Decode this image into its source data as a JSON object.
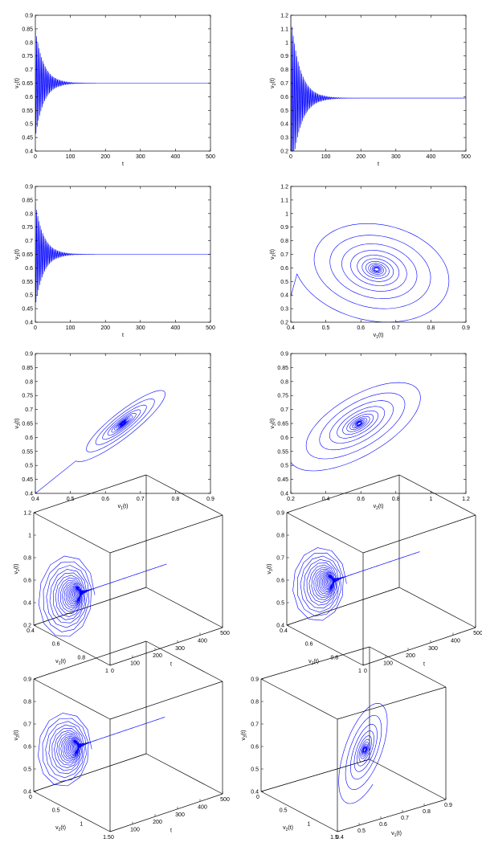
{
  "figure": {
    "trace_color": "#0000ff",
    "axis_color": "#000000"
  },
  "chart_data": [
    {
      "id": "p1",
      "type": "line",
      "panel": "v1-vs-t",
      "xlabel": "t",
      "ylabel": "v1(t)",
      "xlim": [
        0,
        500
      ],
      "ylim": [
        0.4,
        0.9
      ],
      "xticks": [
        "0",
        "100",
        "200",
        "300",
        "400",
        "500"
      ],
      "yticks": [
        "0.4",
        "0.45",
        "0.5",
        "0.55",
        "0.6",
        "0.65",
        "0.7",
        "0.75",
        "0.8",
        "0.85",
        "0.9"
      ],
      "series": [
        {
          "kind": "damped-oscillation",
          "equilibrium": 0.65,
          "initial_amplitude": 0.2,
          "settle_t": 100,
          "period": 3.5
        }
      ]
    },
    {
      "id": "p2",
      "type": "line",
      "panel": "v2-vs-t",
      "xlabel": "t",
      "ylabel": "v2(t)",
      "xlim": [
        0,
        500
      ],
      "ylim": [
        0.2,
        1.2
      ],
      "xticks": [
        "0",
        "100",
        "200",
        "300",
        "400",
        "500"
      ],
      "yticks": [
        "0.2",
        "0.3",
        "0.4",
        "0.5",
        "0.6",
        "0.7",
        "0.8",
        "0.9",
        "1",
        "1.1",
        "1.2"
      ],
      "series": [
        {
          "kind": "damped-oscillation",
          "equilibrium": 0.59,
          "initial_amplitude": 0.6,
          "settle_t": 110,
          "period": 3.5
        }
      ]
    },
    {
      "id": "p3",
      "type": "line",
      "panel": "v3-vs-t",
      "xlabel": "t",
      "ylabel": "v3(t)",
      "xlim": [
        0,
        500
      ],
      "ylim": [
        0.4,
        0.9
      ],
      "xticks": [
        "0",
        "100",
        "200",
        "300",
        "400",
        "500"
      ],
      "yticks": [
        "0.4",
        "0.45",
        "0.5",
        "0.55",
        "0.6",
        "0.65",
        "0.7",
        "0.75",
        "0.8",
        "0.85",
        "0.9"
      ],
      "series": [
        {
          "kind": "damped-oscillation",
          "equilibrium": 0.65,
          "initial_amplitude": 0.19,
          "settle_t": 100,
          "period": 3.5
        }
      ]
    },
    {
      "id": "p4",
      "type": "line",
      "panel": "phase-v1-v2",
      "xlabel": "v1(t)",
      "ylabel": "v2(t)",
      "xlim": [
        0.4,
        0.9
      ],
      "ylim": [
        0.2,
        1.2
      ],
      "xticks": [
        "0.4",
        "0.5",
        "0.6",
        "0.7",
        "0.8",
        "0.9"
      ],
      "yticks": [
        "0.2",
        "0.3",
        "0.4",
        "0.5",
        "0.6",
        "0.7",
        "0.8",
        "0.9",
        "1",
        "1.1",
        "1.2"
      ],
      "series": [
        {
          "kind": "spiral",
          "center": [
            0.645,
            0.59
          ],
          "radius": [
            0.23,
            0.42
          ],
          "tilt": 0.15,
          "turns": 13,
          "start": [
            0.4,
            0.39
          ]
        }
      ]
    },
    {
      "id": "p5",
      "type": "line",
      "panel": "phase-v1-v3",
      "xlabel": "v1(t)",
      "ylabel": "v3(t)",
      "xlim": [
        0.4,
        0.9
      ],
      "ylim": [
        0.4,
        0.9
      ],
      "xticks": [
        "0.4",
        "0.5",
        "0.6",
        "0.7",
        "0.8",
        "0.9"
      ],
      "yticks": [
        "0.4",
        "0.45",
        "0.5",
        "0.55",
        "0.6",
        "0.65",
        "0.7",
        "0.75",
        "0.8",
        "0.85",
        "0.9"
      ],
      "series": [
        {
          "kind": "spiral",
          "center": [
            0.65,
            0.65
          ],
          "radius": [
            0.19,
            0.045
          ],
          "tilt": 0.785,
          "turns": 13,
          "start": [
            0.4,
            0.4
          ]
        }
      ]
    },
    {
      "id": "p6",
      "type": "line",
      "panel": "phase-v2-v3",
      "xlabel": "v2(t)",
      "ylabel": "v3(t)",
      "xlim": [
        0.2,
        1.2
      ],
      "ylim": [
        0.4,
        0.9
      ],
      "xticks": [
        "0.2",
        "0.4",
        "0.6",
        "0.8",
        "1",
        "1.2"
      ],
      "yticks": [
        "0.4",
        "0.45",
        "0.5",
        "0.55",
        "0.6",
        "0.65",
        "0.7",
        "0.75",
        "0.8",
        "0.85",
        "0.9"
      ],
      "series": [
        {
          "kind": "spiral",
          "center": [
            0.59,
            0.65
          ],
          "radius": [
            0.42,
            0.13
          ],
          "tilt": 0.3,
          "turns": 13,
          "start": [
            0.2,
            0.4
          ]
        }
      ]
    },
    {
      "id": "p7",
      "type": "line3d",
      "panel": "v1-t-v2",
      "axes_labels": [
        "v1(t)",
        "t",
        "v2(t)"
      ],
      "a_ticks": [
        "0.4",
        "0.6",
        "0.8",
        "1"
      ],
      "t_ticks": [
        "0",
        "100",
        "200",
        "300",
        "400",
        "500"
      ],
      "z_ticks": [
        "0.2",
        "0.4",
        "0.6",
        "0.8",
        "1",
        "1.2"
      ],
      "series": [
        {
          "kind": "damped-3d",
          "a_eq": 0.65,
          "z_eq": 0.59,
          "a_amp": 0.23,
          "z_amp": 0.42,
          "settle_t": 110
        }
      ]
    },
    {
      "id": "p8",
      "type": "line3d",
      "panel": "v1-t-v3",
      "axes_labels": [
        "v1(t)",
        "t",
        "v3(t)"
      ],
      "a_ticks": [
        "0.4",
        "0.6",
        "0.8",
        "1"
      ],
      "t_ticks": [
        "0",
        "100",
        "200",
        "300",
        "400",
        "500"
      ],
      "z_ticks": [
        "0.4",
        "0.5",
        "0.6",
        "0.7",
        "0.8",
        "0.9"
      ],
      "series": [
        {
          "kind": "damped-3d",
          "a_eq": 0.65,
          "z_eq": 0.65,
          "a_amp": 0.22,
          "z_amp": 0.19,
          "settle_t": 110
        }
      ]
    },
    {
      "id": "p9",
      "type": "line3d",
      "panel": "v2-t-v3",
      "axes_labels": [
        "v2(t)",
        "t",
        "v3(t)"
      ],
      "a_ticks": [
        "0",
        "0.5",
        "1",
        "1.5"
      ],
      "t_ticks": [
        "0",
        "100",
        "200",
        "300",
        "400",
        "500"
      ],
      "z_ticks": [
        "0.4",
        "0.5",
        "0.6",
        "0.7",
        "0.8",
        "0.9"
      ],
      "series": [
        {
          "kind": "damped-3d",
          "a_eq": 0.59,
          "z_eq": 0.65,
          "a_amp": 0.55,
          "z_amp": 0.19,
          "settle_t": 110
        }
      ]
    },
    {
      "id": "p10",
      "type": "line3d",
      "panel": "v2-v1-v3",
      "axes_labels": [
        "v2(t)",
        "v1(t)",
        "v3(t)"
      ],
      "a_ticks": [
        "0",
        "0.5",
        "1",
        "1.5"
      ],
      "b_ticks": [
        "0.4",
        "0.5",
        "0.6",
        "0.7",
        "0.8",
        "0.9"
      ],
      "z_ticks": [
        "0.4",
        "0.5",
        "0.6",
        "0.7",
        "0.8",
        "0.9"
      ],
      "series": [
        {
          "kind": "spiral-3d",
          "center": [
            0.59,
            0.65,
            0.65
          ],
          "turns": 12
        }
      ]
    }
  ]
}
